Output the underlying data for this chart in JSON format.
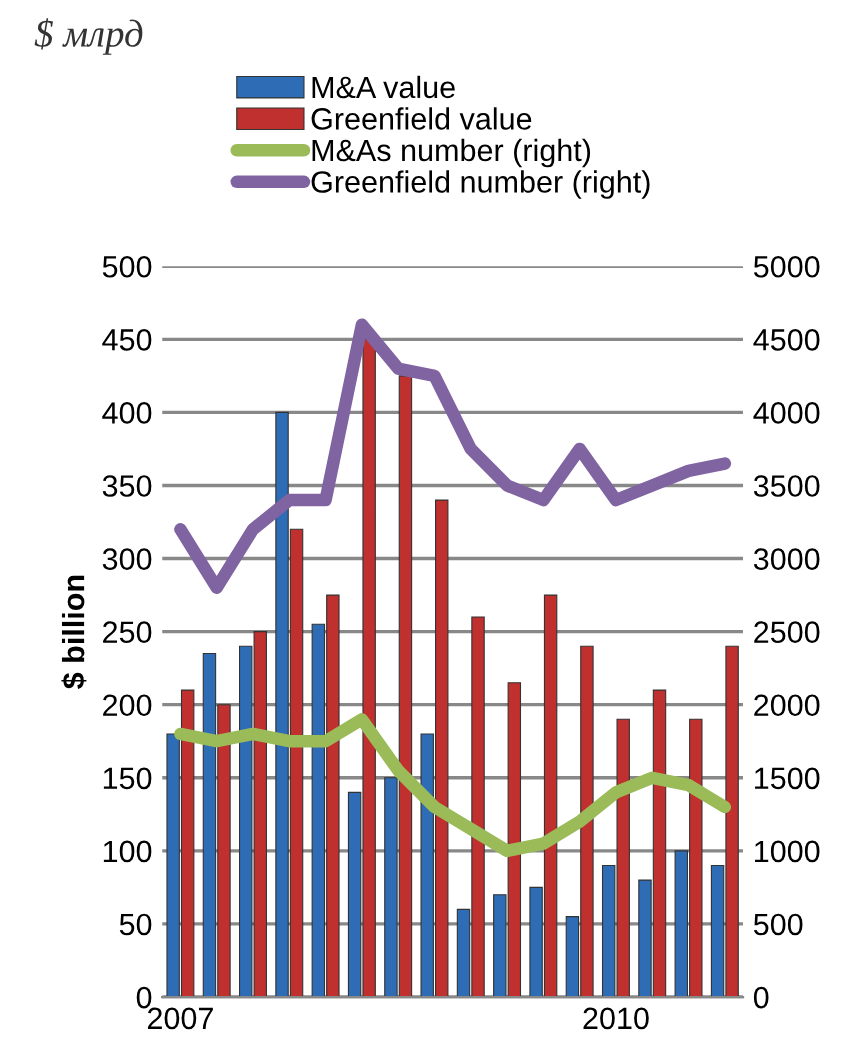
{
  "chart_data": {
    "type": "bar",
    "title": "$ млрд",
    "ylabel": "$ billion",
    "categories": [
      "2007",
      null,
      null,
      null,
      null,
      null,
      null,
      null,
      null,
      null,
      null,
      null,
      "2010",
      null,
      null,
      null
    ],
    "series": [
      {
        "name": "M&A value",
        "color": "#2e6db5",
        "values": [
          180,
          235,
          240,
          400,
          255,
          140,
          150,
          180,
          60,
          70,
          75,
          55,
          90,
          80,
          100,
          90
        ]
      },
      {
        "name": "Greenfield value",
        "color": "#c0302e",
        "values": [
          210,
          200,
          250,
          320,
          275,
          450,
          425,
          340,
          260,
          215,
          275,
          240,
          190,
          210,
          190,
          240
        ]
      },
      {
        "name": "M&As number (right)",
        "type": "line",
        "axis": "y2",
        "color": "#9bbb59",
        "values": [
          1800,
          1750,
          1800,
          1750,
          1750,
          1900,
          1550,
          1300,
          1150,
          1000,
          1050,
          1200,
          1400,
          1500,
          1450,
          1300
        ]
      },
      {
        "name": "Greenfield number (right)",
        "type": "line",
        "axis": "y2",
        "color": "#8064a2",
        "values": [
          3200,
          2800,
          3200,
          3400,
          3400,
          4600,
          4300,
          4250,
          3750,
          3500,
          3400,
          3750,
          3400,
          3500,
          3600,
          3650
        ]
      }
    ],
    "ylim": [
      0,
      500
    ],
    "yticks": [
      0,
      50,
      100,
      150,
      200,
      250,
      300,
      350,
      400,
      450,
      500
    ],
    "y2lim": [
      0,
      5000
    ],
    "y2ticks": [
      0,
      500,
      1000,
      1500,
      2000,
      2500,
      3000,
      3500,
      4000,
      4500,
      5000
    ],
    "grid": "y",
    "legend": "top"
  }
}
